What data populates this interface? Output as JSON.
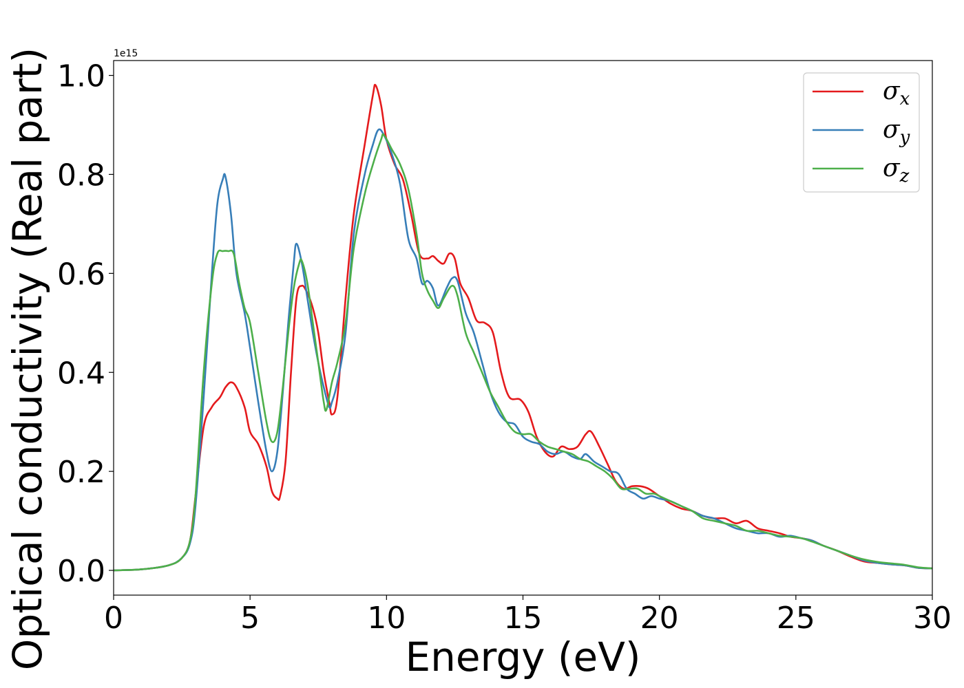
{
  "chart_data": {
    "type": "line",
    "xlabel": "Energy (eV)",
    "ylabel": "Optical conductivity (Real part)",
    "y_offset_text": "1e15",
    "xlim": [
      0,
      30
    ],
    "ylim": [
      -0.05,
      1.03
    ],
    "x_ticks": [
      0,
      5,
      10,
      15,
      20,
      25,
      30
    ],
    "x_tick_labels": [
      "0",
      "5",
      "10",
      "15",
      "20",
      "25",
      "30"
    ],
    "y_ticks": [
      0.0,
      0.2,
      0.4,
      0.6,
      0.8,
      1.0
    ],
    "y_tick_labels": [
      "0.0",
      "0.2",
      "0.4",
      "0.6",
      "0.8",
      "1.0"
    ],
    "grid": false,
    "legend_position": "top-right",
    "series": [
      {
        "name": "σx",
        "symbol": "σ",
        "subscript": "x",
        "color": "#e41a1c",
        "x": [
          0,
          1,
          2,
          2.5,
          2.8,
          3.0,
          3.3,
          3.6,
          3.9,
          4.1,
          4.3,
          4.5,
          4.8,
          5.0,
          5.3,
          5.6,
          5.8,
          6.0,
          6.1,
          6.3,
          6.5,
          6.7,
          6.9,
          7.1,
          7.3,
          7.5,
          7.7,
          7.9,
          8.0,
          8.2,
          8.5,
          8.8,
          9.2,
          9.5,
          9.6,
          9.8,
          10.0,
          10.3,
          10.6,
          10.9,
          11.2,
          11.5,
          11.7,
          11.9,
          12.1,
          12.3,
          12.5,
          12.7,
          13.0,
          13.3,
          13.6,
          13.9,
          14.2,
          14.5,
          14.9,
          15.2,
          15.5,
          15.8,
          16.1,
          16.4,
          16.7,
          17.0,
          17.3,
          17.5,
          17.8,
          18.1,
          18.4,
          18.7,
          19.0,
          19.3,
          19.6,
          20.0,
          20.4,
          20.8,
          21.2,
          21.6,
          22.0,
          22.4,
          22.8,
          23.2,
          23.6,
          24.0,
          24.4,
          24.8,
          25.2,
          25.6,
          26.0,
          26.5,
          27.0,
          27.5,
          28.0,
          28.5,
          29.0,
          29.5,
          30.0
        ],
        "y": [
          0.0,
          0.002,
          0.01,
          0.025,
          0.06,
          0.15,
          0.29,
          0.33,
          0.35,
          0.37,
          0.38,
          0.37,
          0.33,
          0.28,
          0.255,
          0.21,
          0.16,
          0.145,
          0.15,
          0.22,
          0.4,
          0.55,
          0.575,
          0.56,
          0.53,
          0.48,
          0.4,
          0.34,
          0.315,
          0.35,
          0.55,
          0.72,
          0.86,
          0.96,
          0.98,
          0.94,
          0.87,
          0.82,
          0.79,
          0.72,
          0.64,
          0.63,
          0.635,
          0.625,
          0.62,
          0.64,
          0.63,
          0.58,
          0.55,
          0.505,
          0.5,
          0.48,
          0.4,
          0.35,
          0.345,
          0.32,
          0.27,
          0.24,
          0.23,
          0.25,
          0.245,
          0.25,
          0.275,
          0.28,
          0.25,
          0.215,
          0.18,
          0.165,
          0.17,
          0.17,
          0.165,
          0.15,
          0.135,
          0.125,
          0.12,
          0.11,
          0.105,
          0.105,
          0.095,
          0.1,
          0.085,
          0.08,
          0.075,
          0.068,
          0.065,
          0.06,
          0.05,
          0.04,
          0.028,
          0.018,
          0.015,
          0.012,
          0.01,
          0.005,
          0.004
        ]
      },
      {
        "name": "σy",
        "symbol": "σ",
        "subscript": "y",
        "color": "#377eb8",
        "x": [
          0,
          1,
          2,
          2.5,
          2.8,
          3.0,
          3.3,
          3.6,
          3.8,
          4.0,
          4.1,
          4.3,
          4.5,
          4.8,
          5.0,
          5.3,
          5.6,
          5.8,
          6.0,
          6.2,
          6.4,
          6.6,
          6.7,
          6.9,
          7.1,
          7.3,
          7.5,
          7.7,
          7.9,
          8.0,
          8.2,
          8.5,
          8.8,
          9.2,
          9.5,
          9.7,
          9.9,
          10.2,
          10.5,
          10.8,
          11.1,
          11.3,
          11.5,
          11.7,
          11.9,
          12.2,
          12.4,
          12.6,
          12.9,
          13.2,
          13.5,
          13.8,
          14.1,
          14.4,
          14.7,
          15.0,
          15.3,
          15.6,
          15.9,
          16.2,
          16.5,
          16.8,
          17.1,
          17.3,
          17.6,
          17.9,
          18.2,
          18.5,
          18.8,
          19.1,
          19.4,
          19.7,
          20.0,
          20.4,
          20.8,
          21.2,
          21.6,
          22.0,
          22.4,
          22.8,
          23.2,
          23.6,
          24.0,
          24.4,
          24.8,
          25.2,
          25.6,
          26.0,
          26.5,
          27.0,
          27.5,
          28.0,
          28.5,
          29.0,
          29.5,
          30.0
        ],
        "y": [
          0.0,
          0.002,
          0.01,
          0.025,
          0.055,
          0.13,
          0.35,
          0.6,
          0.74,
          0.79,
          0.795,
          0.72,
          0.6,
          0.52,
          0.45,
          0.34,
          0.24,
          0.2,
          0.24,
          0.36,
          0.5,
          0.62,
          0.66,
          0.62,
          0.55,
          0.48,
          0.42,
          0.37,
          0.33,
          0.34,
          0.38,
          0.48,
          0.68,
          0.8,
          0.86,
          0.89,
          0.88,
          0.84,
          0.78,
          0.67,
          0.63,
          0.58,
          0.585,
          0.57,
          0.535,
          0.57,
          0.59,
          0.585,
          0.52,
          0.48,
          0.42,
          0.36,
          0.32,
          0.3,
          0.295,
          0.27,
          0.26,
          0.255,
          0.24,
          0.235,
          0.24,
          0.23,
          0.225,
          0.235,
          0.22,
          0.21,
          0.2,
          0.195,
          0.165,
          0.155,
          0.145,
          0.15,
          0.145,
          0.14,
          0.13,
          0.12,
          0.11,
          0.105,
          0.095,
          0.085,
          0.08,
          0.075,
          0.075,
          0.068,
          0.07,
          0.065,
          0.06,
          0.05,
          0.04,
          0.03,
          0.02,
          0.015,
          0.012,
          0.01,
          0.005,
          0.004
        ]
      },
      {
        "name": "σz",
        "symbol": "σ",
        "subscript": "z",
        "color": "#4daf4a",
        "x": [
          0,
          1,
          2,
          2.5,
          2.8,
          3.0,
          3.3,
          3.6,
          3.8,
          4.0,
          4.2,
          4.4,
          4.6,
          4.8,
          5.0,
          5.3,
          5.6,
          5.8,
          6.0,
          6.2,
          6.4,
          6.6,
          6.8,
          6.9,
          7.1,
          7.3,
          7.5,
          7.7,
          7.8,
          8.0,
          8.2,
          8.5,
          8.8,
          9.2,
          9.5,
          9.8,
          9.9,
          10.2,
          10.5,
          10.8,
          11.1,
          11.3,
          11.5,
          11.7,
          11.9,
          12.1,
          12.4,
          12.6,
          12.9,
          13.2,
          13.5,
          13.8,
          14.1,
          14.4,
          14.7,
          15.0,
          15.3,
          15.6,
          15.9,
          16.2,
          16.5,
          16.8,
          17.1,
          17.4,
          17.7,
          18.0,
          18.3,
          18.6,
          18.9,
          19.2,
          19.5,
          19.8,
          20.0,
          20.4,
          20.8,
          21.2,
          21.6,
          22.0,
          22.4,
          22.8,
          23.2,
          23.6,
          24.0,
          24.4,
          24.8,
          25.2,
          25.6,
          26.0,
          26.5,
          27.0,
          27.5,
          28.0,
          28.5,
          29.0,
          29.5,
          30.0
        ],
        "y": [
          0.0,
          0.002,
          0.01,
          0.025,
          0.06,
          0.15,
          0.4,
          0.58,
          0.64,
          0.645,
          0.645,
          0.64,
          0.58,
          0.53,
          0.5,
          0.4,
          0.3,
          0.26,
          0.28,
          0.37,
          0.48,
          0.57,
          0.62,
          0.625,
          0.58,
          0.5,
          0.42,
          0.34,
          0.325,
          0.38,
          0.42,
          0.5,
          0.65,
          0.76,
          0.82,
          0.87,
          0.88,
          0.85,
          0.82,
          0.77,
          0.68,
          0.6,
          0.565,
          0.545,
          0.53,
          0.55,
          0.575,
          0.555,
          0.48,
          0.44,
          0.4,
          0.36,
          0.33,
          0.3,
          0.28,
          0.275,
          0.275,
          0.26,
          0.25,
          0.245,
          0.24,
          0.235,
          0.225,
          0.22,
          0.21,
          0.2,
          0.185,
          0.165,
          0.165,
          0.165,
          0.155,
          0.155,
          0.15,
          0.14,
          0.13,
          0.12,
          0.105,
          0.1,
          0.095,
          0.09,
          0.08,
          0.08,
          0.075,
          0.07,
          0.068,
          0.065,
          0.058,
          0.05,
          0.04,
          0.03,
          0.022,
          0.017,
          0.014,
          0.011,
          0.006,
          0.004
        ]
      }
    ]
  }
}
